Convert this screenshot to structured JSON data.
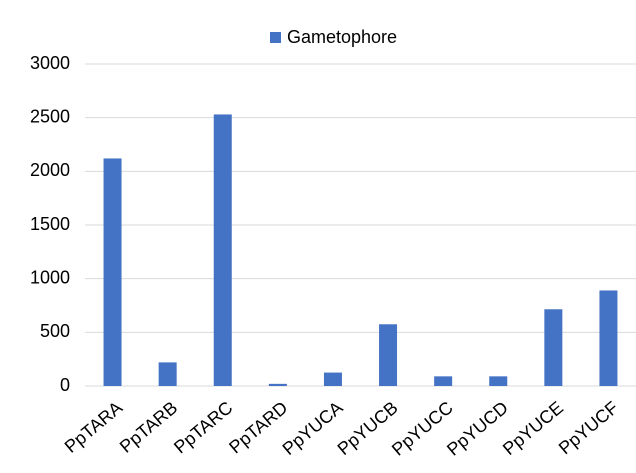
{
  "chart_data": {
    "type": "bar",
    "categories": [
      "PpTARA",
      "PpTARB",
      "PpTARC",
      "PpTARD",
      "PpYUCA",
      "PpYUCB",
      "PpYUCC",
      "PpYUCD",
      "PpYUCE",
      "PpYUCF"
    ],
    "series": [
      {
        "name": "Gametophore",
        "color": "#4472c4",
        "values": [
          2120,
          220,
          2530,
          20,
          125,
          575,
          90,
          90,
          715,
          890
        ]
      }
    ],
    "ylim": [
      0,
      3000
    ],
    "yticks": [
      0,
      500,
      1000,
      1500,
      2000,
      2500,
      3000
    ],
    "grid": true,
    "legend": "top"
  }
}
